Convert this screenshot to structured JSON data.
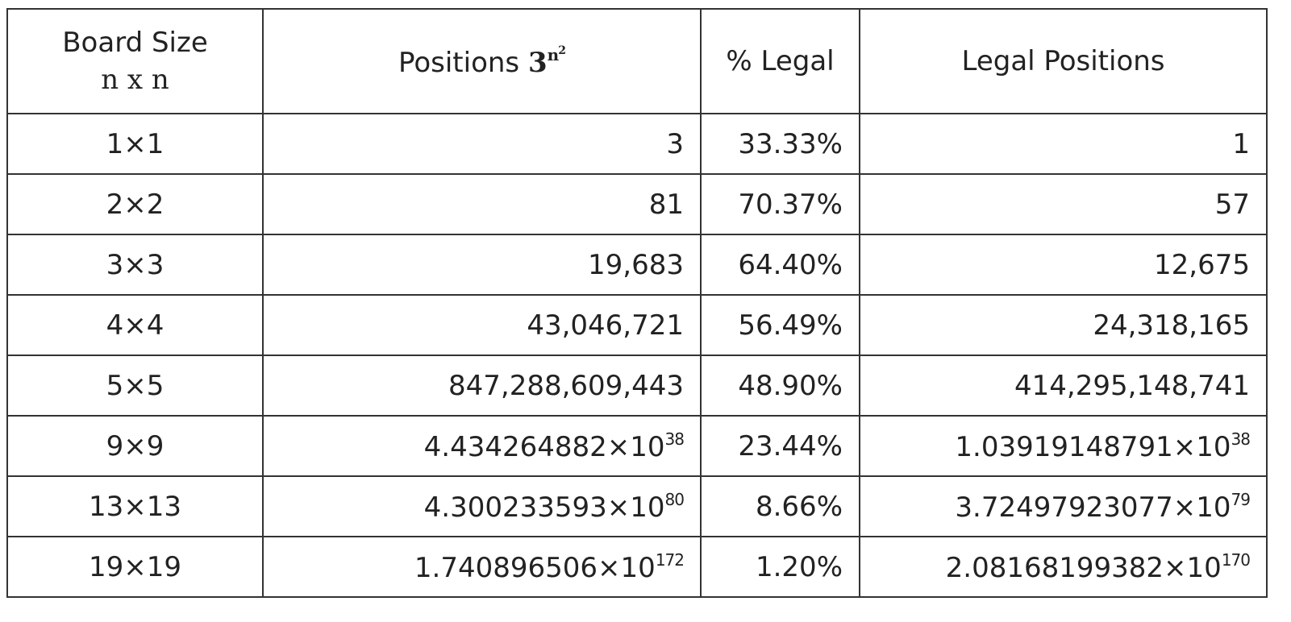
{
  "table": {
    "header": [
      [
        "Board Size",
        "n x n"
      ],
      {
        "text": "Positions",
        "base": "3",
        "exp": "n",
        "exp2": "2"
      },
      "% Legal",
      "Legal Positions"
    ],
    "rows": [
      [
        "1×1",
        "3",
        "33.33%",
        "1"
      ],
      [
        "2×2",
        "81",
        "70.37%",
        "57"
      ],
      [
        "3×3",
        "19,683",
        "64.40%",
        "12,675"
      ],
      [
        "4×4",
        "43,046,721",
        "56.49%",
        "24,318,165"
      ],
      [
        "5×5",
        "847,288,609,443",
        "48.90%",
        "414,295,148,741"
      ],
      [
        "9×9",
        {
          "base": "4.434264882×10",
          "exp": "38"
        },
        "23.44%",
        {
          "base": "1.03919148791×10",
          "exp": "38"
        }
      ],
      [
        "13×13",
        {
          "base": "4.300233593×10",
          "exp": "80"
        },
        "8.66%",
        {
          "base": "3.72497923077×10",
          "exp": "79"
        }
      ],
      [
        "19×19",
        {
          "base": "1.740896506×10",
          "exp": "172"
        },
        "1.20%",
        {
          "base": "2.08168199382×10",
          "exp": "170"
        }
      ]
    ]
  }
}
